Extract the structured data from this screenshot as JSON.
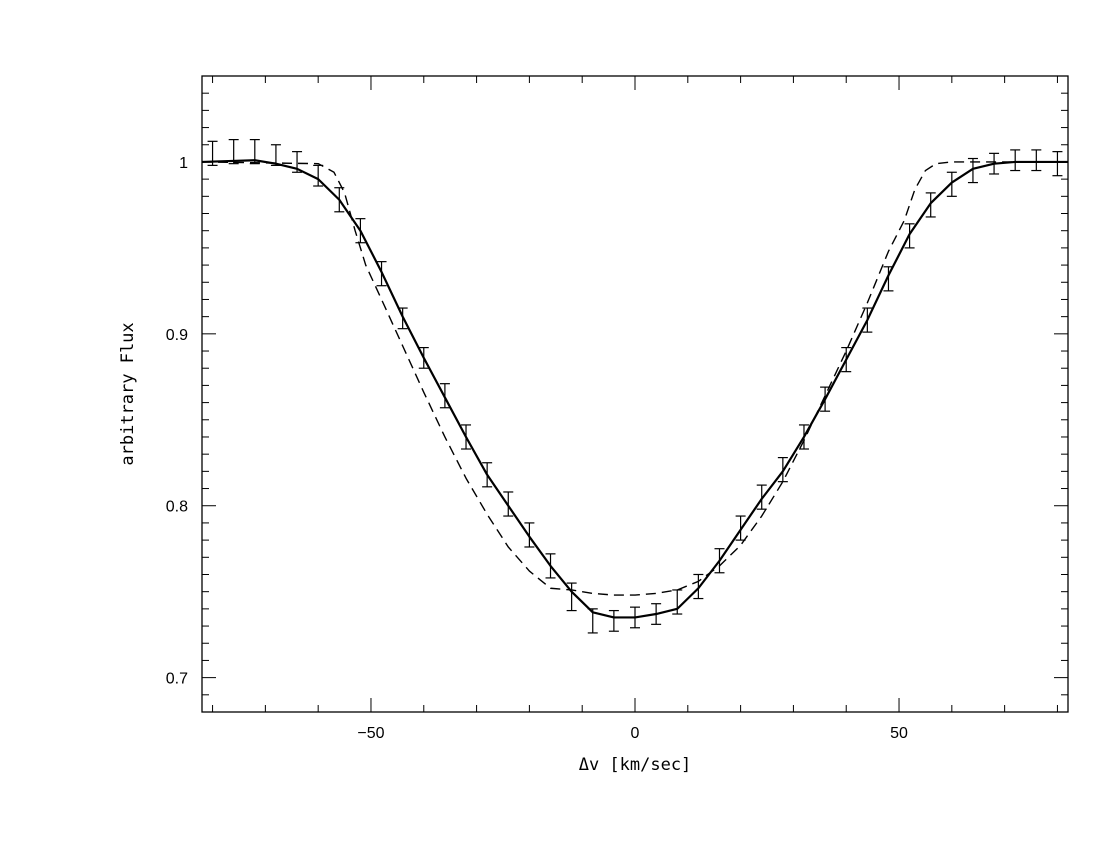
{
  "chart_data": {
    "type": "line",
    "title": "",
    "xlabel": "Δv [km/sec]",
    "ylabel": "arbitrary Flux",
    "xlim": [
      -82,
      82
    ],
    "ylim": [
      0.68,
      1.05
    ],
    "xticks_major": [
      -50,
      0,
      50
    ],
    "xtick_labels": [
      "−50",
      "0",
      "50"
    ],
    "yticks_major": [
      0.7,
      0.8,
      0.9,
      1.0
    ],
    "ytick_labels": [
      "0.7",
      "0.8",
      "0.9",
      "1"
    ],
    "grid": false,
    "series": [
      {
        "style": "solid",
        "x": [
          -82,
          -72,
          -68,
          -64,
          -60,
          -56,
          -52,
          -48,
          -44,
          -40,
          -36,
          -32,
          -28,
          -24,
          -20,
          -16,
          -12,
          -8,
          -4,
          0,
          4,
          8,
          12,
          16,
          20,
          24,
          28,
          32,
          36,
          40,
          44,
          48,
          52,
          56,
          60,
          64,
          68,
          72,
          76,
          82
        ],
        "y": [
          1.0,
          1.001,
          0.999,
          0.996,
          0.99,
          0.978,
          0.96,
          0.936,
          0.91,
          0.886,
          0.863,
          0.84,
          0.818,
          0.8,
          0.782,
          0.765,
          0.75,
          0.738,
          0.735,
          0.735,
          0.737,
          0.74,
          0.752,
          0.768,
          0.786,
          0.804,
          0.82,
          0.84,
          0.862,
          0.885,
          0.908,
          0.934,
          0.958,
          0.976,
          0.988,
          0.996,
          0.999,
          1.0,
          1.0,
          1.0
        ]
      },
      {
        "style": "dashed",
        "x": [
          -82,
          -60,
          -57,
          -55,
          -53,
          -51,
          -48,
          -44,
          -40,
          -36,
          -32,
          -28,
          -24,
          -20,
          -16,
          -12,
          -8,
          -4,
          0,
          4,
          8,
          12,
          16,
          20,
          24,
          28,
          32,
          36,
          40,
          44,
          48,
          51,
          53,
          55,
          57,
          60,
          82
        ],
        "y": [
          1.0,
          0.999,
          0.994,
          0.982,
          0.96,
          0.94,
          0.92,
          0.893,
          0.866,
          0.84,
          0.816,
          0.795,
          0.776,
          0.762,
          0.752,
          0.751,
          0.749,
          0.748,
          0.748,
          0.749,
          0.751,
          0.756,
          0.765,
          0.777,
          0.794,
          0.814,
          0.838,
          0.864,
          0.89,
          0.918,
          0.948,
          0.966,
          0.984,
          0.995,
          0.999,
          1.0,
          1.0
        ]
      }
    ],
    "errorbars": {
      "x": [
        -80,
        -76,
        -72,
        -68,
        -64,
        -60,
        -56,
        -52,
        -48,
        -44,
        -40,
        -36,
        -32,
        -28,
        -24,
        -20,
        -16,
        -12,
        -8,
        -4,
        0,
        4,
        8,
        12,
        16,
        20,
        24,
        28,
        32,
        36,
        40,
        44,
        48,
        52,
        56,
        60,
        64,
        68,
        72,
        76,
        80
      ],
      "y": [
        1.005,
        1.006,
        1.006,
        1.004,
        1.0,
        0.992,
        0.978,
        0.96,
        0.935,
        0.909,
        0.886,
        0.864,
        0.84,
        0.818,
        0.801,
        0.783,
        0.765,
        0.747,
        0.733,
        0.733,
        0.735,
        0.737,
        0.744,
        0.753,
        0.768,
        0.787,
        0.805,
        0.821,
        0.84,
        0.862,
        0.885,
        0.908,
        0.932,
        0.957,
        0.975,
        0.987,
        0.995,
        0.999,
        1.001,
        1.001,
        0.999
      ],
      "err": [
        0.007,
        0.007,
        0.007,
        0.006,
        0.006,
        0.006,
        0.007,
        0.007,
        0.007,
        0.006,
        0.006,
        0.007,
        0.007,
        0.007,
        0.007,
        0.007,
        0.007,
        0.008,
        0.007,
        0.006,
        0.006,
        0.006,
        0.007,
        0.007,
        0.007,
        0.007,
        0.007,
        0.007,
        0.007,
        0.007,
        0.007,
        0.007,
        0.007,
        0.007,
        0.007,
        0.007,
        0.007,
        0.006,
        0.006,
        0.006,
        0.007
      ]
    }
  }
}
